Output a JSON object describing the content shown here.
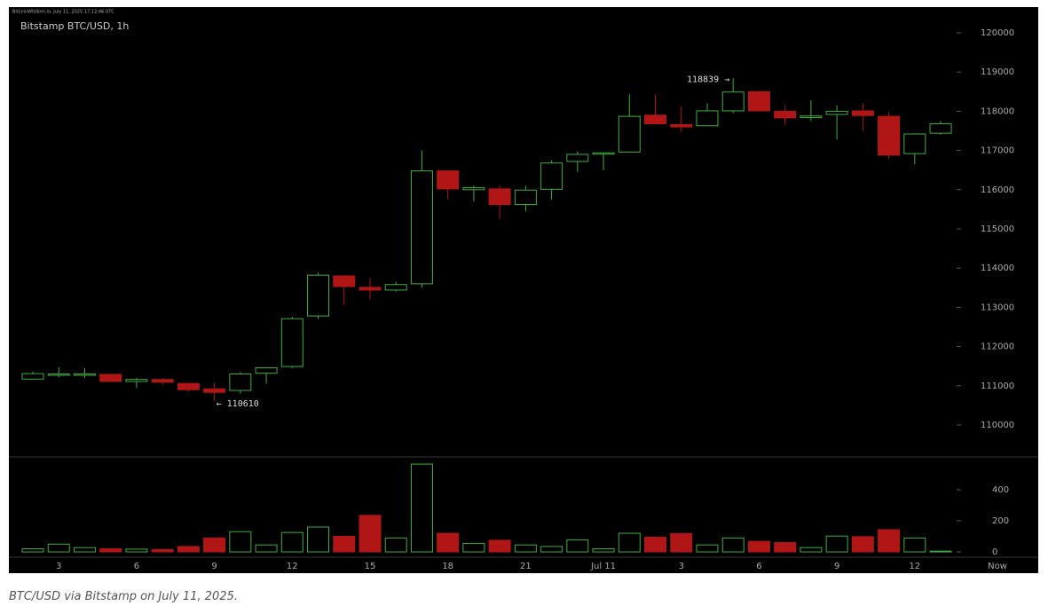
{
  "header_text": "BitcoinWisdom.io, July 11, 2025 17:12:46 UTC",
  "caption": "BTC/USD via Bitstamp on July 11, 2025.",
  "chart_data": {
    "type": "candlestick",
    "title": "Bitstamp BTC/USD, 1h",
    "categories": [
      null,
      "3",
      null,
      null,
      "6",
      null,
      null,
      "9",
      null,
      null,
      "12",
      null,
      null,
      "15",
      null,
      null,
      "18",
      null,
      null,
      "21",
      null,
      null,
      "Jul 11",
      null,
      null,
      "3",
      null,
      null,
      "6",
      null,
      null,
      "9",
      null,
      null,
      "12",
      null
    ],
    "now_label": "Now",
    "up_color": "#3fae3f",
    "down_color": "#b01616",
    "open": [
      111170,
      111270,
      111280,
      111290,
      111110,
      111160,
      111060,
      110920,
      110880,
      111320,
      111490,
      112780,
      113800,
      113510,
      113440,
      113600,
      116480,
      116000,
      116020,
      115620,
      116010,
      116720,
      116920,
      116960,
      117900,
      117660,
      117630,
      118010,
      118500,
      118000,
      117840,
      117920,
      118010,
      117870,
      116920,
      117440
    ],
    "high": [
      111360,
      111470,
      111450,
      111300,
      111200,
      111200,
      111080,
      111080,
      111350,
      111470,
      112760,
      113880,
      113830,
      113750,
      113650,
      117000,
      116480,
      116100,
      116100,
      116100,
      116750,
      116980,
      116950,
      118430,
      118430,
      118130,
      118200,
      118839,
      118520,
      118150,
      118280,
      118150,
      118200,
      117980,
      117440,
      117750
    ],
    "low": [
      111150,
      111220,
      111200,
      111100,
      110950,
      111020,
      110850,
      110610,
      110800,
      111050,
      111450,
      112700,
      113070,
      113200,
      113400,
      113500,
      115750,
      115700,
      115270,
      115450,
      115750,
      116450,
      116490,
      116950,
      117680,
      117470,
      117620,
      117950,
      118000,
      117650,
      117750,
      117280,
      117480,
      116780,
      116650,
      117400
    ],
    "close": [
      111310,
      111300,
      111300,
      111110,
      111160,
      111090,
      110900,
      110830,
      111300,
      111460,
      112710,
      113820,
      113530,
      113440,
      113580,
      116480,
      116020,
      116050,
      115620,
      115990,
      116680,
      116900,
      116940,
      117870,
      117680,
      117600,
      118010,
      118490,
      118010,
      117830,
      117880,
      118000,
      117890,
      116880,
      117420,
      117680
    ],
    "volume": [
      20,
      50,
      28,
      20,
      18,
      15,
      35,
      90,
      130,
      45,
      125,
      160,
      100,
      235,
      90,
      565,
      120,
      55,
      75,
      45,
      35,
      78,
      20,
      120,
      95,
      118,
      45,
      90,
      68,
      60,
      28,
      102,
      98,
      143,
      90,
      5
    ],
    "ylim": [
      109185,
      120656
    ],
    "yticks": [
      110000,
      111000,
      112000,
      113000,
      114000,
      115000,
      116000,
      117000,
      118000,
      119000,
      120000
    ],
    "volume_ylim": [
      -34,
      611
    ],
    "volume_ticks": [
      0,
      200,
      400
    ],
    "annotations": [
      {
        "label": "118839 →",
        "index": 27,
        "value": 118839,
        "side": "left"
      },
      {
        "label": "← 110610",
        "index": 7,
        "value": 110610,
        "side": "right"
      }
    ]
  }
}
